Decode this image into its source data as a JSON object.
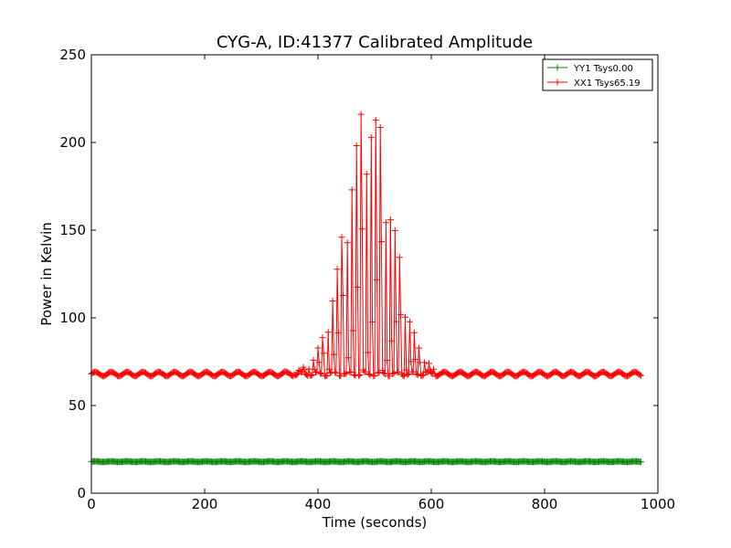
{
  "chart_data": {
    "type": "line",
    "title": "CYG-A, ID:41377 Calibrated Amplitude",
    "xlabel": "Time (seconds)",
    "ylabel": "Power in Kelvin",
    "xlim": [
      0,
      1000
    ],
    "ylim": [
      0,
      250
    ],
    "x_ticks": [
      0,
      200,
      400,
      600,
      800,
      1000
    ],
    "y_ticks": [
      0,
      50,
      100,
      150,
      200,
      250
    ],
    "grid": false,
    "legend_position": "top-right",
    "x_end": 970,
    "sample_step": 2,
    "series": [
      {
        "name": "YY1 Tsys0.00",
        "color": "#008000",
        "marker": "+",
        "baseline": 18,
        "ripple": 0.2,
        "ripple_period": 28
      },
      {
        "name": "XX1 Tsys65.19",
        "color": "#ff0000",
        "marker": "+",
        "baseline": 68,
        "ripple": 1.2,
        "ripple_period": 28,
        "burst_start": 340,
        "burst_end": 610,
        "burst_peak_time": 490,
        "burst_peak_value": 225,
        "burst_width": 58,
        "pulse_period": 8.5
      }
    ]
  }
}
